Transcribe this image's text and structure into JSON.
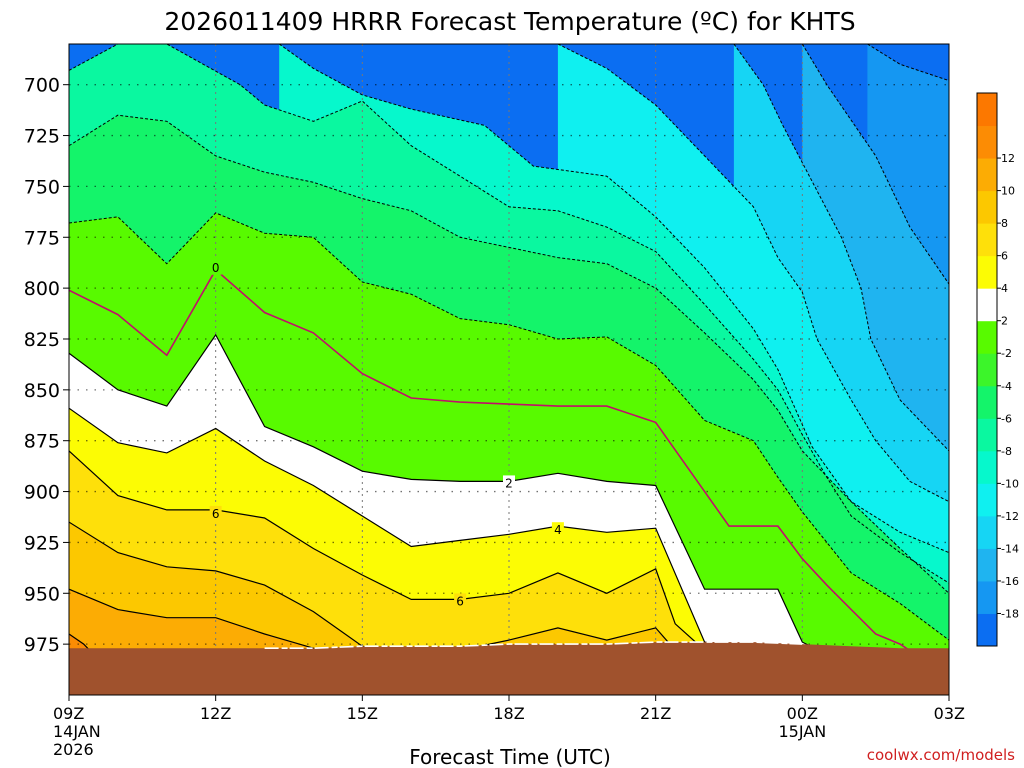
{
  "chart_data": {
    "type": "heatmap",
    "title": "2026011409 HRRR Forecast Temperature (ºC) for KHTS",
    "xlabel": "Forecast Time (UTC)",
    "ylabel": "",
    "credit": "coolwx.com/models",
    "x_hours_range": [
      0,
      18
    ],
    "y_pressure_range": [
      1000,
      680
    ],
    "x_ticks": [
      {
        "hour": 0,
        "label": "09Z",
        "sub": [
          "14JAN",
          "2026"
        ]
      },
      {
        "hour": 3,
        "label": "12Z",
        "sub": []
      },
      {
        "hour": 6,
        "label": "15Z",
        "sub": []
      },
      {
        "hour": 9,
        "label": "18Z",
        "sub": []
      },
      {
        "hour": 12,
        "label": "21Z",
        "sub": []
      },
      {
        "hour": 15,
        "label": "00Z",
        "sub": [
          "15JAN"
        ]
      },
      {
        "hour": 18,
        "label": "03Z",
        "sub": []
      }
    ],
    "y_ticks": [
      "700",
      "725",
      "750",
      "775",
      "800",
      "825",
      "850",
      "875",
      "900",
      "925",
      "950",
      "975"
    ],
    "colorbar": {
      "levels": [
        -20,
        -18,
        -16,
        -14,
        -12,
        -10,
        -8,
        -6,
        -4,
        -2,
        2,
        4,
        6,
        8,
        10,
        12,
        14
      ],
      "labels": [
        "-18",
        "-16",
        "-14",
        "-12",
        "-10",
        "-8",
        "-6",
        "-4",
        "-2",
        "2",
        "4",
        "6",
        "8",
        "10",
        "12"
      ],
      "colors": [
        "#0b6ef2",
        "#1597f2",
        "#1fb4f0",
        "#16d5f4",
        "#0ff0f0",
        "#06f8cc",
        "#0af8a0",
        "#14f46a",
        "#3cf52a",
        "#58fa00",
        "#ffffff",
        "#fcfc04",
        "#fee00a",
        "#fcc800",
        "#fcac04",
        "#fc8c04",
        "#fc7800"
      ]
    },
    "contour_labels": [
      {
        "text": "0",
        "hour": 3.0,
        "pressure": 790
      },
      {
        "text": "2",
        "hour": 9.0,
        "pressure": 896
      },
      {
        "text": "4",
        "hour": 10.0,
        "pressure": 919
      },
      {
        "text": "6",
        "hour": 3.0,
        "pressure": 911
      },
      {
        "text": "6",
        "hour": 8.0,
        "pressure": 954
      }
    ],
    "contours": [
      {
        "level": -18,
        "style": "dash",
        "pts": [
          [
            16.33,
            680
          ],
          [
            17.0,
            690
          ],
          [
            18.0,
            698
          ]
        ]
      },
      {
        "level": -16,
        "style": "dash",
        "pts": [
          [
            15.0,
            680
          ],
          [
            15.5,
            700
          ],
          [
            16.5,
            735
          ],
          [
            17.2,
            770
          ],
          [
            18.0,
            798
          ]
        ]
      },
      {
        "level": -14,
        "style": "dash",
        "pts": [
          [
            13.6,
            680
          ],
          [
            14.2,
            700
          ],
          [
            14.6,
            720
          ],
          [
            15.8,
            775
          ],
          [
            16.2,
            800
          ],
          [
            16.4,
            825
          ],
          [
            17.0,
            855
          ],
          [
            18.0,
            880
          ]
        ]
      },
      {
        "level": -12,
        "style": "dash",
        "pts": [
          [
            10.0,
            680
          ],
          [
            11.0,
            692
          ],
          [
            12.0,
            710
          ],
          [
            13.0,
            735
          ],
          [
            14.0,
            760
          ],
          [
            14.5,
            785
          ],
          [
            15.0,
            802
          ],
          [
            15.3,
            825
          ],
          [
            16.0,
            855
          ],
          [
            16.5,
            875
          ],
          [
            17.2,
            895
          ],
          [
            18.0,
            905
          ]
        ]
      },
      {
        "level": -10,
        "style": "dash",
        "pts": [
          [
            4.3,
            680
          ],
          [
            5.0,
            692
          ],
          [
            6.0,
            705
          ],
          [
            7.0,
            712
          ],
          [
            8.5,
            720
          ],
          [
            9.5,
            740
          ],
          [
            11.0,
            745
          ],
          [
            12.0,
            765
          ],
          [
            13.0,
            790
          ],
          [
            14.0,
            820
          ],
          [
            14.5,
            840
          ],
          [
            15.2,
            878
          ],
          [
            16.0,
            905
          ],
          [
            17.0,
            920
          ],
          [
            18.0,
            930
          ]
        ]
      },
      {
        "level": -8,
        "style": "dash",
        "pts": [
          [
            0.0,
            693
          ],
          [
            1.0,
            680
          ],
          [
            2.0,
            680
          ],
          [
            3.5,
            700
          ],
          [
            4.0,
            710
          ],
          [
            5.0,
            718
          ],
          [
            6.0,
            708
          ],
          [
            7.0,
            730
          ],
          [
            8.0,
            745
          ],
          [
            9.0,
            760
          ],
          [
            10.0,
            762
          ],
          [
            11.0,
            770
          ],
          [
            12.0,
            782
          ],
          [
            13.0,
            808
          ],
          [
            14.0,
            835
          ],
          [
            14.5,
            850
          ],
          [
            15.0,
            872
          ],
          [
            15.5,
            893
          ],
          [
            16.0,
            912
          ],
          [
            17.0,
            930
          ],
          [
            18.0,
            945
          ]
        ]
      },
      {
        "level": -6,
        "style": "dash",
        "pts": [
          [
            0.0,
            730
          ],
          [
            1.0,
            715
          ],
          [
            2.0,
            718
          ],
          [
            3.0,
            735
          ],
          [
            4.0,
            743
          ],
          [
            5.0,
            748
          ],
          [
            6.0,
            756
          ],
          [
            7.0,
            762
          ],
          [
            8.0,
            775
          ],
          [
            9.0,
            780
          ],
          [
            10.0,
            785
          ],
          [
            11.0,
            788
          ],
          [
            12.0,
            800
          ],
          [
            13.0,
            822
          ],
          [
            14.0,
            845
          ],
          [
            14.5,
            860
          ],
          [
            15.0,
            880
          ],
          [
            16.0,
            905
          ],
          [
            17.0,
            928
          ],
          [
            18.0,
            950
          ]
        ]
      },
      {
        "level": -4,
        "style": "dash",
        "pts": [
          [
            0.0,
            768
          ],
          [
            1.0,
            765
          ],
          [
            2.0,
            788
          ],
          [
            3.0,
            763
          ],
          [
            4.0,
            773
          ],
          [
            5.0,
            775
          ],
          [
            6.0,
            797
          ],
          [
            7.0,
            803
          ],
          [
            8.0,
            815
          ],
          [
            9.0,
            818
          ],
          [
            10.0,
            825
          ],
          [
            11.0,
            824
          ],
          [
            12.0,
            838
          ],
          [
            13.0,
            865
          ],
          [
            14.0,
            875
          ],
          [
            14.5,
            893
          ],
          [
            15.0,
            910
          ],
          [
            15.5,
            925
          ],
          [
            16.0,
            940
          ],
          [
            17.0,
            955
          ],
          [
            18.0,
            973
          ]
        ]
      },
      {
        "level": -2,
        "style": "dash",
        "pts": [
          [
            0.0,
            768
          ],
          [
            1.0,
            765
          ],
          [
            2.0,
            788
          ],
          [
            3.0,
            763
          ],
          [
            4.0,
            773
          ],
          [
            5.0,
            775
          ],
          [
            6.0,
            797
          ],
          [
            7.0,
            803
          ],
          [
            8.0,
            815
          ],
          [
            9.0,
            818
          ],
          [
            10.0,
            825
          ],
          [
            11.0,
            824
          ],
          [
            12.0,
            838
          ],
          [
            13.0,
            865
          ],
          [
            14.0,
            875
          ],
          [
            14.5,
            893
          ],
          [
            15.0,
            910
          ],
          [
            15.5,
            925
          ],
          [
            16.0,
            940
          ],
          [
            17.0,
            955
          ],
          [
            18.0,
            973
          ]
        ]
      },
      {
        "level": 0,
        "style": "magenta",
        "pts": [
          [
            0.0,
            801
          ],
          [
            1.0,
            813
          ],
          [
            2.0,
            833
          ],
          [
            3.0,
            791
          ],
          [
            4.0,
            812
          ],
          [
            5.0,
            822
          ],
          [
            6.0,
            842
          ],
          [
            7.0,
            854
          ],
          [
            8.0,
            856
          ],
          [
            9.0,
            857
          ],
          [
            10.0,
            858
          ],
          [
            11.0,
            858
          ],
          [
            12.0,
            866
          ],
          [
            13.0,
            900
          ],
          [
            13.5,
            917
          ],
          [
            14.0,
            917
          ],
          [
            14.5,
            917
          ],
          [
            15.0,
            933
          ],
          [
            15.5,
            946
          ],
          [
            16.0,
            958
          ],
          [
            16.5,
            970
          ],
          [
            17.0,
            975
          ],
          [
            17.5,
            983
          ]
        ]
      },
      {
        "level": 2,
        "style": "solid",
        "pts": [
          [
            0.0,
            832
          ],
          [
            1.0,
            850
          ],
          [
            2.0,
            858
          ],
          [
            3.0,
            823
          ],
          [
            4.0,
            868
          ],
          [
            5.0,
            878
          ],
          [
            6.0,
            890
          ],
          [
            7.0,
            894
          ],
          [
            8.0,
            895
          ],
          [
            9.0,
            895
          ],
          [
            10.0,
            891
          ],
          [
            11.0,
            895
          ],
          [
            12.0,
            897
          ],
          [
            13.0,
            948
          ],
          [
            13.5,
            948
          ],
          [
            14.0,
            948
          ],
          [
            14.5,
            948
          ],
          [
            15.0,
            974
          ],
          [
            15.5,
            980
          ]
        ]
      },
      {
        "level": 4,
        "style": "solid",
        "pts": [
          [
            0.0,
            859
          ],
          [
            1.0,
            876
          ],
          [
            2.0,
            881
          ],
          [
            3.0,
            869
          ],
          [
            4.0,
            885
          ],
          [
            5.0,
            897
          ],
          [
            6.0,
            912
          ],
          [
            7.0,
            927
          ],
          [
            8.0,
            924
          ],
          [
            9.0,
            921
          ],
          [
            10.0,
            917
          ],
          [
            11.0,
            920
          ],
          [
            12.0,
            918
          ],
          [
            13.0,
            974
          ],
          [
            14.0,
            976
          ],
          [
            14.5,
            982
          ]
        ]
      },
      {
        "level": 6,
        "style": "solid",
        "pts": [
          [
            0.0,
            880
          ],
          [
            1.0,
            902
          ],
          [
            2.0,
            909
          ],
          [
            3.0,
            909
          ],
          [
            4.0,
            913
          ],
          [
            5.0,
            928
          ],
          [
            6.0,
            941
          ],
          [
            7.0,
            953
          ],
          [
            8.0,
            953
          ],
          [
            9.0,
            950
          ],
          [
            10.0,
            940
          ],
          [
            11.0,
            950
          ],
          [
            12.0,
            938
          ],
          [
            12.4,
            965
          ],
          [
            13.0,
            978
          ]
        ]
      },
      {
        "level": 8,
        "style": "solid",
        "pts": [
          [
            0.0,
            915
          ],
          [
            1.0,
            930
          ],
          [
            2.0,
            937
          ],
          [
            3.0,
            939
          ],
          [
            4.0,
            946
          ],
          [
            5.0,
            959
          ],
          [
            6.0,
            976
          ],
          [
            7.0,
            980
          ],
          [
            8.0,
            978
          ],
          [
            9.0,
            973
          ],
          [
            10.0,
            967
          ],
          [
            11.0,
            973
          ],
          [
            12.0,
            967
          ],
          [
            12.4,
            978
          ]
        ]
      },
      {
        "level": 10,
        "style": "solid",
        "pts": [
          [
            0.0,
            948
          ],
          [
            1.0,
            958
          ],
          [
            2.0,
            962
          ],
          [
            3.0,
            962
          ],
          [
            4.0,
            970
          ],
          [
            5.0,
            977
          ],
          [
            6.0,
            981
          ]
        ]
      },
      {
        "level": 12,
        "style": "solid",
        "pts": [
          [
            0.0,
            970
          ],
          [
            0.3,
            975
          ],
          [
            0.5,
            980
          ]
        ]
      }
    ],
    "surface_pressure": [
      [
        0,
        977
      ],
      [
        1,
        977
      ],
      [
        2,
        977
      ],
      [
        3,
        977
      ],
      [
        4,
        977
      ],
      [
        5,
        977
      ],
      [
        6,
        976
      ],
      [
        7,
        976
      ],
      [
        8,
        976
      ],
      [
        9,
        975
      ],
      [
        10,
        975
      ],
      [
        11,
        975
      ],
      [
        12,
        974
      ],
      [
        13,
        974
      ],
      [
        14,
        974
      ],
      [
        15,
        975
      ],
      [
        16,
        976
      ],
      [
        17,
        977
      ],
      [
        18,
        977
      ]
    ],
    "ground_color": "#a0522d",
    "grid": true
  }
}
